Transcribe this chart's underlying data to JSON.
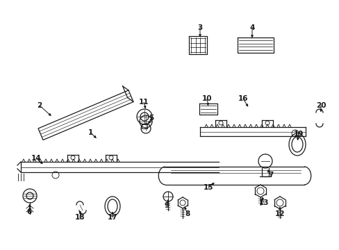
{
  "background_color": "#ffffff",
  "line_color": "#1a1a1a",
  "parts_labels": {
    "1": [
      130,
      192,
      138,
      200
    ],
    "2": [
      58,
      152,
      78,
      165
    ],
    "3": [
      288,
      42,
      288,
      56
    ],
    "4": [
      360,
      42,
      360,
      56
    ],
    "5": [
      215,
      172,
      213,
      183
    ],
    "6": [
      42,
      303,
      44,
      290
    ],
    "7": [
      388,
      252,
      382,
      242
    ],
    "8": [
      268,
      308,
      265,
      295
    ],
    "9": [
      238,
      295,
      240,
      283
    ],
    "10": [
      298,
      143,
      300,
      156
    ],
    "11": [
      204,
      147,
      208,
      158
    ],
    "12": [
      402,
      308,
      400,
      295
    ],
    "13": [
      378,
      290,
      376,
      280
    ],
    "14": [
      52,
      228,
      62,
      238
    ],
    "15": [
      300,
      268,
      310,
      260
    ],
    "16": [
      350,
      143,
      358,
      158
    ],
    "17": [
      162,
      312,
      162,
      300
    ],
    "18": [
      115,
      312,
      118,
      300
    ],
    "19": [
      428,
      193,
      425,
      205
    ],
    "20": [
      460,
      152,
      460,
      165
    ]
  }
}
